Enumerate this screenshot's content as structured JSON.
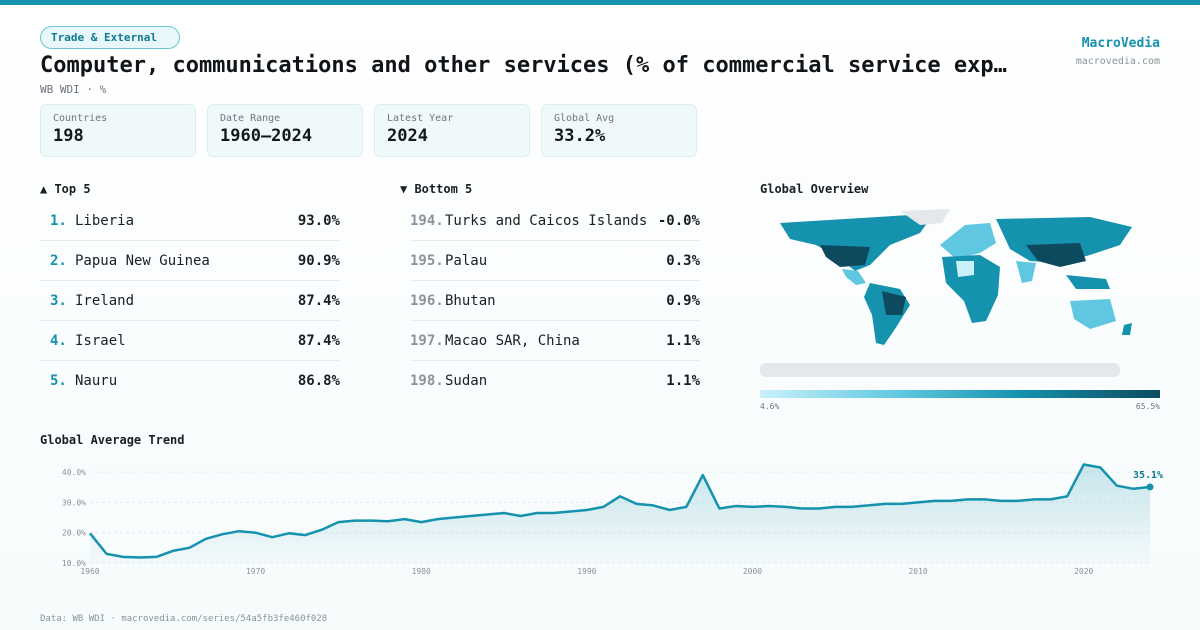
{
  "header": {
    "category": "Trade & External",
    "title": "Computer, communications and other services (% of commercial service exp…",
    "subtitle": "WB WDI · %",
    "brand": "MacroVedia",
    "brand_url": "macrovedia.com"
  },
  "stats": [
    {
      "label": "Countries",
      "value": "198"
    },
    {
      "label": "Date Range",
      "value": "1960–2024"
    },
    {
      "label": "Latest Year",
      "value": "2024"
    },
    {
      "label": "Global Avg",
      "value": "33.2%"
    }
  ],
  "top5": {
    "heading": "▲ Top 5",
    "items": [
      {
        "rank": "1.",
        "name": "Liberia",
        "value": "93.0%"
      },
      {
        "rank": "2.",
        "name": "Papua New Guinea",
        "value": "90.9%"
      },
      {
        "rank": "3.",
        "name": "Ireland",
        "value": "87.4%"
      },
      {
        "rank": "4.",
        "name": "Israel",
        "value": "87.4%"
      },
      {
        "rank": "5.",
        "name": "Nauru",
        "value": "86.8%"
      }
    ]
  },
  "bottom5": {
    "heading": "▼ Bottom 5",
    "items": [
      {
        "rank": "194.",
        "name": "Turks and Caicos Islands",
        "value": "-0.0%"
      },
      {
        "rank": "195.",
        "name": "Palau",
        "value": "0.3%"
      },
      {
        "rank": "196.",
        "name": "Bhutan",
        "value": "0.9%"
      },
      {
        "rank": "197.",
        "name": "Macao SAR, China",
        "value": "1.1%"
      },
      {
        "rank": "198.",
        "name": "Sudan",
        "value": "1.1%"
      }
    ]
  },
  "map": {
    "heading": "Global Overview",
    "legend_min": "4.6%",
    "legend_max": "65.5%",
    "colors": [
      "#c9f1fa",
      "#5fc8e0",
      "#1592ad",
      "#0e4a5e"
    ]
  },
  "trend": {
    "heading": "Global Average Trend",
    "last_label": "35.1%"
  },
  "chart_data": {
    "type": "area",
    "title": "Global Average Trend",
    "x": [
      1960,
      1961,
      1962,
      1963,
      1964,
      1965,
      1966,
      1967,
      1968,
      1969,
      1970,
      1971,
      1972,
      1973,
      1974,
      1975,
      1976,
      1977,
      1978,
      1979,
      1980,
      1981,
      1982,
      1983,
      1984,
      1985,
      1986,
      1987,
      1988,
      1989,
      1990,
      1991,
      1992,
      1993,
      1994,
      1995,
      1996,
      1997,
      1998,
      1999,
      2000,
      2001,
      2002,
      2003,
      2004,
      2005,
      2006,
      2007,
      2008,
      2009,
      2010,
      2011,
      2012,
      2013,
      2014,
      2015,
      2016,
      2017,
      2018,
      2019,
      2020,
      2021,
      2022,
      2023,
      2024
    ],
    "values": [
      19.8,
      13.0,
      12.0,
      11.8,
      12.0,
      14.0,
      15.0,
      18.0,
      19.5,
      20.5,
      20.0,
      18.5,
      19.8,
      19.2,
      21.0,
      23.5,
      24.0,
      24.0,
      23.8,
      24.5,
      23.5,
      24.5,
      25.0,
      25.5,
      26.0,
      26.5,
      25.5,
      26.5,
      26.5,
      27.0,
      27.5,
      28.5,
      32.0,
      29.5,
      29.0,
      27.5,
      28.5,
      39.0,
      28.0,
      28.8,
      28.5,
      28.8,
      28.5,
      28.0,
      28.0,
      28.5,
      28.5,
      29.0,
      29.5,
      29.5,
      30.0,
      30.5,
      30.5,
      31.0,
      31.0,
      30.5,
      30.5,
      31.0,
      31.0,
      32.0,
      42.5,
      41.5,
      35.5,
      34.5,
      35.1
    ],
    "xticks": [
      1960,
      1970,
      1980,
      1990,
      2000,
      2010,
      2020
    ],
    "yticks": [
      "10.0%",
      "20.0%",
      "30.0%",
      "40.0%"
    ],
    "ylim": [
      10,
      43
    ],
    "color": "#1592ad"
  },
  "footer": "Data: WB WDI · macrovedia.com/series/54a5fb3fe460f028"
}
